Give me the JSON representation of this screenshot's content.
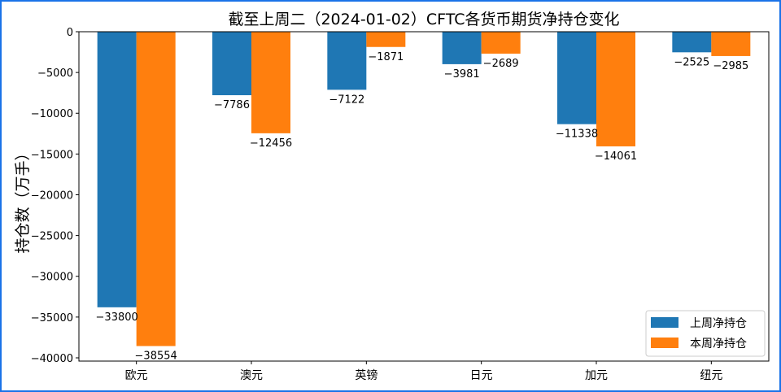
{
  "chart_data": {
    "type": "bar",
    "title": "截至上周二（2024-01-02）CFTC各货币期货净持仓变化",
    "xlabel": "",
    "ylabel": "持仓数（万手）",
    "categories": [
      "欧元",
      "澳元",
      "英镑",
      "日元",
      "加元",
      "纽元"
    ],
    "series": [
      {
        "name": "上周净持仓",
        "color": "#1f77b4",
        "values": [
          -33800,
          -7786,
          -7122,
          -3981,
          -11338,
          -2525
        ]
      },
      {
        "name": "本周净持仓",
        "color": "#ff7f0e",
        "values": [
          -38554,
          -12456,
          -1871,
          -2689,
          -14061,
          -2985
        ]
      }
    ],
    "ylim": [
      -40400,
      0
    ],
    "yticks": [
      0,
      -5000,
      -10000,
      -15000,
      -20000,
      -25000,
      -30000,
      -35000,
      -40000
    ],
    "grid": false,
    "legend_position": "bottom-right"
  }
}
